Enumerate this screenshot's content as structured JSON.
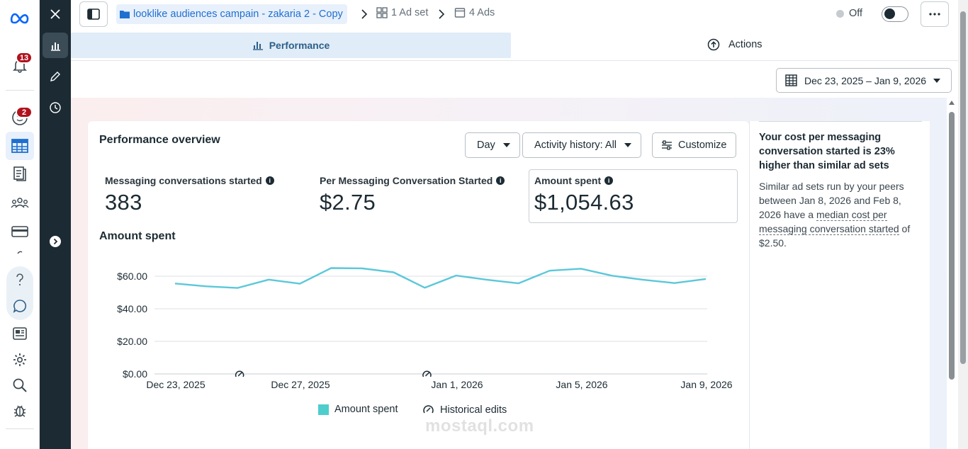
{
  "rail": {
    "notifications_count": "13",
    "second_badge_count": "2"
  },
  "header": {
    "campaign_name": "looklike audiences campain - zakaria 2 - Copy",
    "adset_crumb": "1 Ad set",
    "ads_crumb": "4 Ads",
    "status_label": "Off"
  },
  "tabs": {
    "performance": "Performance",
    "actions": "Actions"
  },
  "date_range": "Dec 23, 2025 – Jan 9, 2026",
  "overview": {
    "title": "Performance overview",
    "granularity": "Day",
    "activity_history": "Activity history: All",
    "customize": "Customize",
    "metrics": [
      {
        "label": "Messaging conversations started",
        "value": "383"
      },
      {
        "label": "Per Messaging Conversation Started",
        "value": "$2.75"
      },
      {
        "label": "Amount spent",
        "value": "$1,054.63"
      }
    ],
    "chart_title": "Amount spent",
    "legend_series": "Amount spent",
    "legend_edits": "Historical edits"
  },
  "chart_data": {
    "type": "line",
    "xlabel": "",
    "ylabel": "",
    "ylim": [
      0,
      60
    ],
    "y_ticks": [
      "$0.00",
      "$20.00",
      "$40.00",
      "$60.00"
    ],
    "x_ticks": [
      "Dec 23, 2025",
      "Dec 27, 2025",
      "Jan 1, 2026",
      "Jan 5, 2026",
      "Jan 9, 2026"
    ],
    "x": [
      "Dec 23, 2025",
      "Dec 24, 2025",
      "Dec 25, 2025",
      "Dec 26, 2025",
      "Dec 27, 2025",
      "Dec 28, 2025",
      "Dec 29, 2025",
      "Dec 30, 2025",
      "Dec 31, 2025",
      "Jan 1, 2026",
      "Jan 2, 2026",
      "Jan 3, 2026",
      "Jan 4, 2026",
      "Jan 5, 2026",
      "Jan 6, 2026",
      "Jan 7, 2026",
      "Jan 8, 2026",
      "Jan 9, 2026"
    ],
    "series": [
      {
        "name": "Amount spent",
        "color": "#5bc8d9",
        "values": [
          55.5,
          53.8,
          52.8,
          57.9,
          55.4,
          65.0,
          64.8,
          62.4,
          52.9,
          60.4,
          57.8,
          55.6,
          63.4,
          64.6,
          60.3,
          57.8,
          55.8,
          58.3
        ]
      }
    ],
    "historical_edit_markers": [
      "Dec 25, 2025",
      "Dec 31, 2025"
    ],
    "grid": true,
    "legend_position": "bottom"
  },
  "insight": {
    "headline": "Your cost per messaging conversation started is 23% higher than similar ad sets",
    "body_prefix": "Similar ad sets run by your peers between Jan 8, 2026 and Feb 8, 2026 have a ",
    "body_link": "median cost per messaging conversation started",
    "body_suffix": " of $2.50."
  },
  "watermark": "mostaql.com",
  "colors": {
    "accent": "#1f6fd0",
    "dark_panel": "#1c2b33",
    "badge": "#b0121d",
    "series": "#5bc8d9"
  }
}
